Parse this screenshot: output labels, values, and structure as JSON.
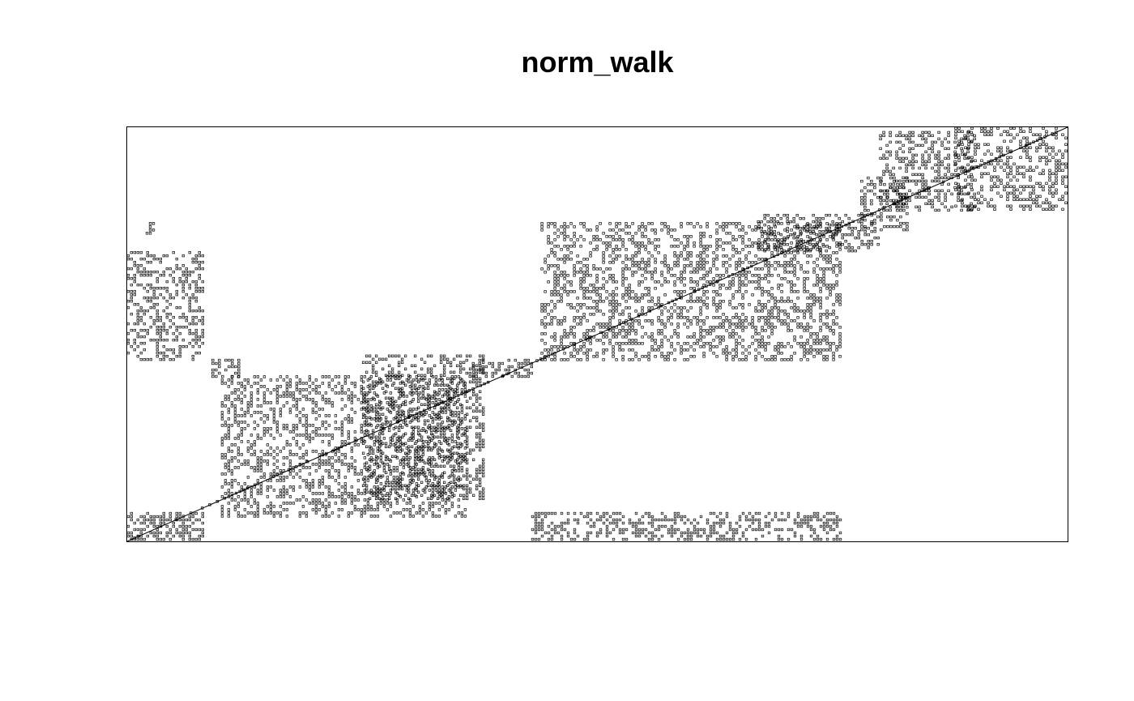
{
  "chart_data": {
    "type": "scatter",
    "subtype": "recurrence-plot",
    "title": "norm_walk",
    "xlabel": "",
    "ylabel": "",
    "axes_shown": false,
    "box": true,
    "grid": false,
    "legend": "none",
    "marker_color": "#000000",
    "marker_style": "open-square",
    "diagonal": {
      "from": [
        0,
        0
      ],
      "to": [
        1,
        1
      ]
    },
    "clusters": [
      {
        "x": [
          0.0,
          0.08
        ],
        "y": [
          0.0,
          0.07
        ],
        "density": 0.55
      },
      {
        "x": [
          0.0,
          0.08
        ],
        "y": [
          0.44,
          0.7
        ],
        "density": 0.42
      },
      {
        "x": [
          0.02,
          0.03
        ],
        "y": [
          0.74,
          0.77
        ],
        "density": 0.5
      },
      {
        "x": [
          0.09,
          0.12
        ],
        "y": [
          0.4,
          0.44
        ],
        "density": 0.5
      },
      {
        "x": [
          0.1,
          0.36
        ],
        "y": [
          0.06,
          0.4
        ],
        "density": 0.4
      },
      {
        "x": [
          0.25,
          0.38
        ],
        "y": [
          0.1,
          0.45
        ],
        "density": 0.4
      },
      {
        "x": [
          0.36,
          0.43
        ],
        "y": [
          0.4,
          0.44
        ],
        "density": 0.5
      },
      {
        "x": [
          0.43,
          0.76
        ],
        "y": [
          0.0,
          0.07
        ],
        "density": 0.4
      },
      {
        "x": [
          0.44,
          0.76
        ],
        "y": [
          0.44,
          0.77
        ],
        "density": 0.42
      },
      {
        "x": [
          0.67,
          0.8
        ],
        "y": [
          0.7,
          0.79
        ],
        "density": 0.4
      },
      {
        "x": [
          0.78,
          0.83
        ],
        "y": [
          0.75,
          0.88
        ],
        "density": 0.45
      },
      {
        "x": [
          0.8,
          0.9
        ],
        "y": [
          0.8,
          0.99
        ],
        "density": 0.4
      },
      {
        "x": [
          0.88,
          1.0
        ],
        "y": [
          0.8,
          1.0
        ],
        "density": 0.4
      }
    ]
  }
}
